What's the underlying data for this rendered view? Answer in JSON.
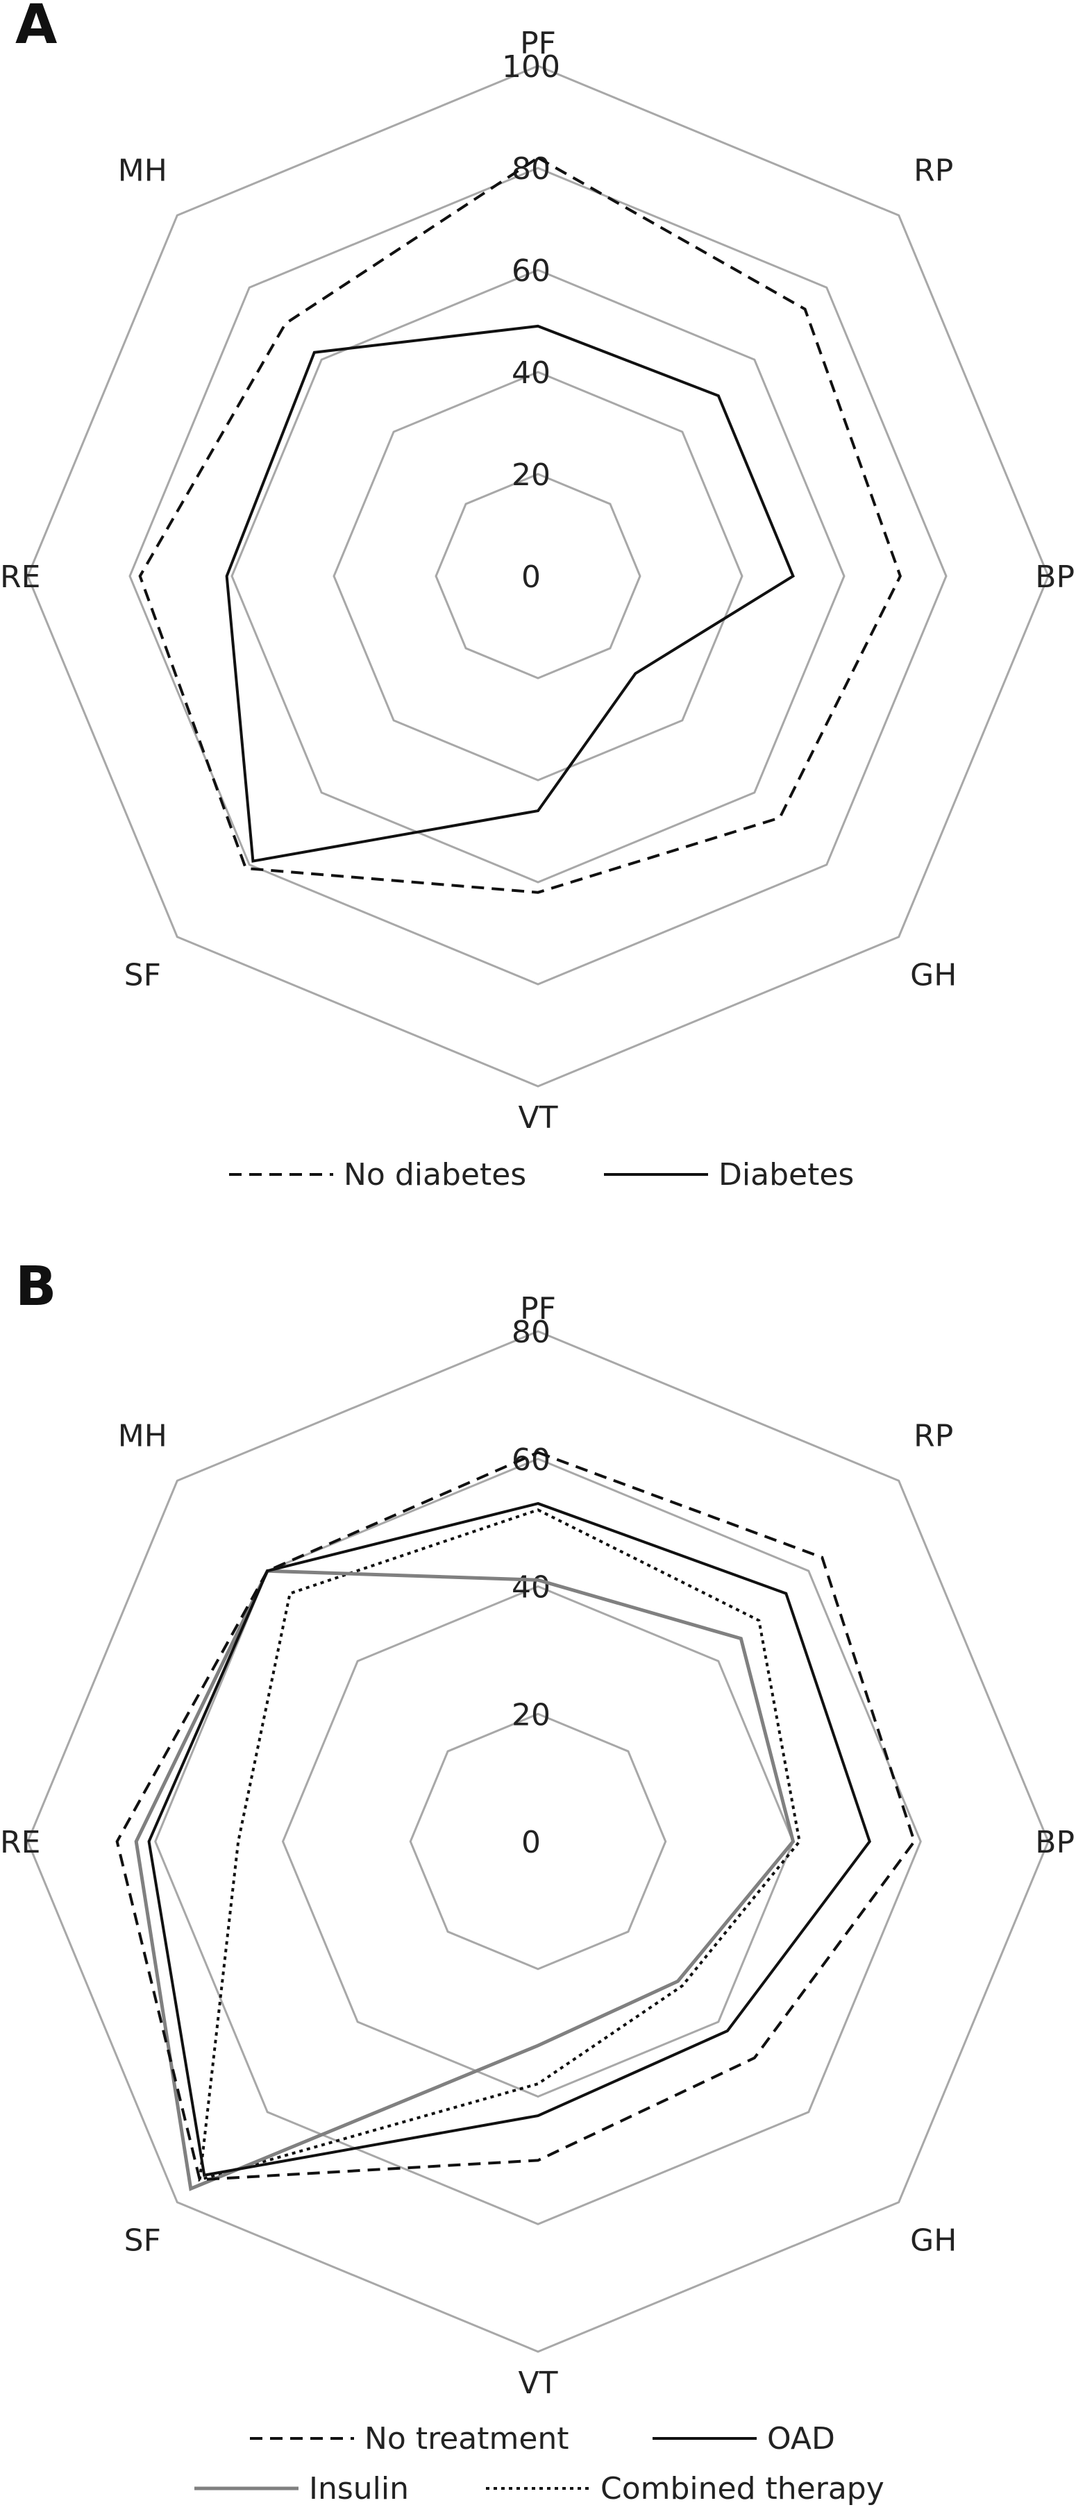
{
  "chart_data": [
    {
      "type": "radar",
      "panel_label": "A",
      "axes": [
        "PF",
        "RP",
        "BP",
        "GH",
        "VT",
        "SF",
        "RE",
        "MH"
      ],
      "rlim": [
        0,
        100
      ],
      "ticks": [
        "0",
        "20",
        "40",
        "60",
        "80",
        "100"
      ],
      "tick_values": [
        0,
        20,
        40,
        60,
        80,
        100
      ],
      "grid": true,
      "legend_position": "bottom",
      "series": [
        {
          "name": "No diabetes",
          "style": "dashed",
          "color": "#111111",
          "values": [
            82,
            74,
            71,
            67,
            62,
            81,
            78,
            70
          ]
        },
        {
          "name": "Diabetes",
          "style": "solid",
          "color": "#111111",
          "values": [
            49,
            50,
            50,
            27,
            46,
            79,
            61,
            62
          ]
        }
      ]
    },
    {
      "type": "radar",
      "panel_label": "B",
      "axes": [
        "PF",
        "RP",
        "BP",
        "GH",
        "VT",
        "SF",
        "RE",
        "MH"
      ],
      "rlim": [
        0,
        80
      ],
      "ticks": [
        "0",
        "20",
        "40",
        "60",
        "80"
      ],
      "tick_values": [
        0,
        20,
        40,
        60,
        80
      ],
      "grid": true,
      "legend_position": "bottom",
      "series": [
        {
          "name": "No treatment",
          "style": "dashed",
          "color": "#111111",
          "values": [
            61,
            63,
            59,
            48,
            50,
            75,
            66,
            60
          ]
        },
        {
          "name": "OAD",
          "style": "solid",
          "color": "#111111",
          "values": [
            53,
            55,
            52,
            42,
            43,
            74,
            61,
            60
          ]
        },
        {
          "name": "Insulin",
          "style": "solid",
          "color": "#808080",
          "values": [
            41,
            45,
            40,
            31,
            32,
            77,
            63,
            60
          ]
        },
        {
          "name": "Combined therapy",
          "style": "dotted",
          "color": "#111111",
          "values": [
            52,
            49,
            41,
            32,
            38,
            75,
            47,
            55
          ]
        }
      ]
    }
  ]
}
